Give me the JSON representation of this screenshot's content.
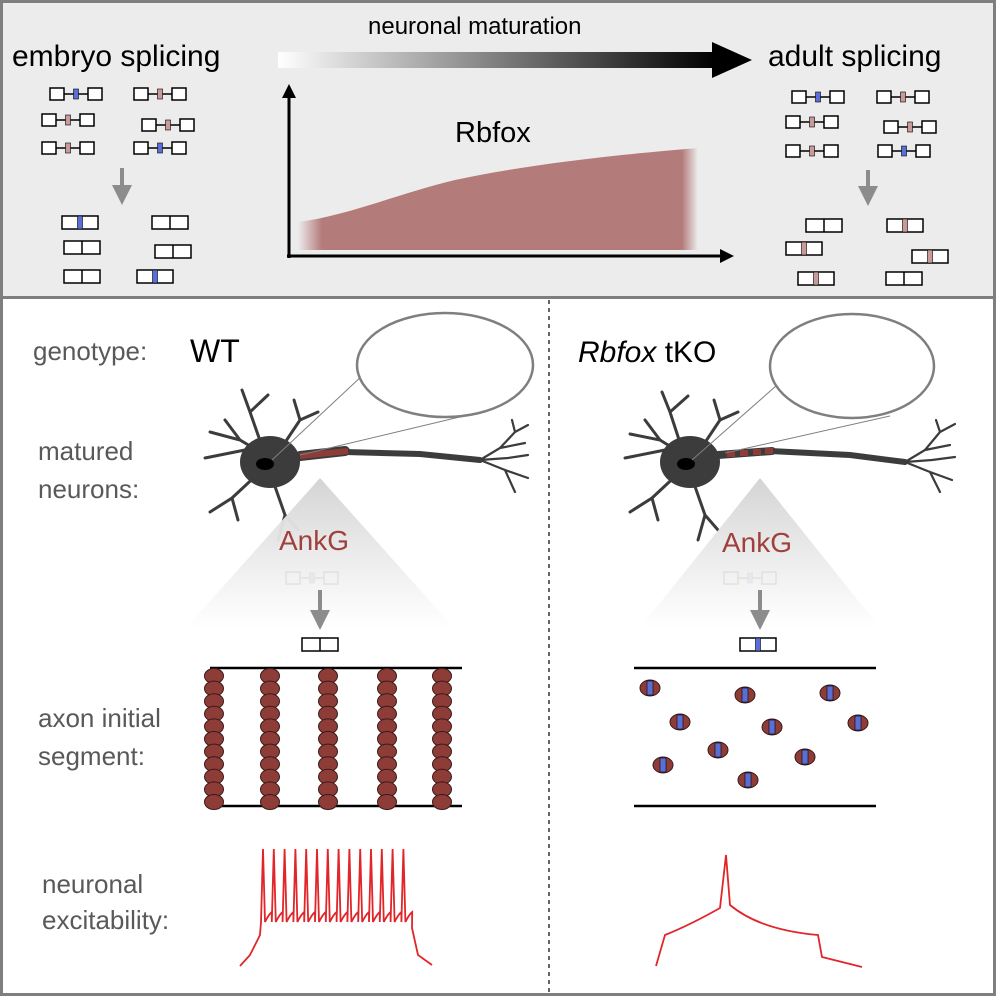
{
  "top_panel": {
    "left_title": "embryo splicing",
    "right_title": "adult splicing",
    "arrow_label": "neuronal maturation",
    "curve_label": "Rbfox"
  },
  "bottom_panel": {
    "row_labels": {
      "genotype": "genotype:",
      "matured_line1": "matured",
      "matured_line2": "neurons:",
      "ais_line1": "axon initial",
      "ais_line2": "segment:",
      "excit_line1": "neuronal",
      "excit_line2": "excitability:"
    },
    "wt": {
      "genotype_name": "WT",
      "protein_label": "AnkG"
    },
    "tko": {
      "genotype_name_italic": "Rbfox",
      "genotype_name_suffix": " tKO",
      "protein_label": "AnkG"
    }
  },
  "colors": {
    "top_background": "#ececec",
    "border": "#7f7f7f",
    "exon_blue": "#5a6fd6",
    "exon_pink": "#c99a9a",
    "rbfox_fill": "#b47b7b",
    "spectrin_bead": "#8e3c38",
    "trace_red": "#e0262a",
    "ankg_text": "#a0403c"
  }
}
